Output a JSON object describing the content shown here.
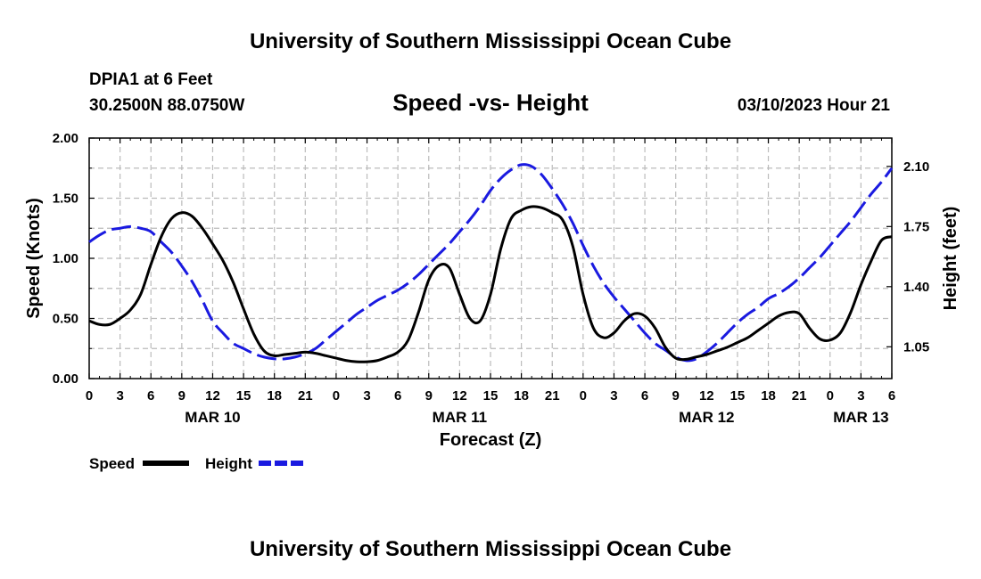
{
  "header": {
    "title": "University of Southern Mississippi Ocean Cube",
    "station": "DPIA1 at 6 Feet",
    "coords": "30.2500N  88.0750W",
    "subtitle": "Speed -vs- Height",
    "datetime": "03/10/2023 Hour 21"
  },
  "footer": {
    "title": "University of Southern Mississippi Ocean Cube"
  },
  "chart_data": {
    "type": "line",
    "xlabel": "Forecast (Z)",
    "ylabel": "Speed (Knots)",
    "y2label": "Height (feet)",
    "xlim": [
      0,
      78
    ],
    "ylim": [
      0,
      2.0
    ],
    "y2lim": [
      0.865,
      2.265
    ],
    "grid": true,
    "x_ticks": [
      {
        "h": 0,
        "label": "0"
      },
      {
        "h": 3,
        "label": "3"
      },
      {
        "h": 6,
        "label": "6"
      },
      {
        "h": 9,
        "label": "9"
      },
      {
        "h": 12,
        "label": "12"
      },
      {
        "h": 15,
        "label": "15"
      },
      {
        "h": 18,
        "label": "18"
      },
      {
        "h": 21,
        "label": "21"
      },
      {
        "h": 24,
        "label": "0"
      },
      {
        "h": 27,
        "label": "3"
      },
      {
        "h": 30,
        "label": "6"
      },
      {
        "h": 33,
        "label": "9"
      },
      {
        "h": 36,
        "label": "12"
      },
      {
        "h": 39,
        "label": "15"
      },
      {
        "h": 42,
        "label": "18"
      },
      {
        "h": 45,
        "label": "21"
      },
      {
        "h": 48,
        "label": "0"
      },
      {
        "h": 51,
        "label": "3"
      },
      {
        "h": 54,
        "label": "6"
      },
      {
        "h": 57,
        "label": "9"
      },
      {
        "h": 60,
        "label": "12"
      },
      {
        "h": 63,
        "label": "15"
      },
      {
        "h": 66,
        "label": "18"
      },
      {
        "h": 69,
        "label": "21"
      },
      {
        "h": 72,
        "label": "0"
      },
      {
        "h": 75,
        "label": "3"
      },
      {
        "h": 78,
        "label": "6"
      }
    ],
    "date_labels": [
      {
        "h": 12,
        "label": "MAR 10"
      },
      {
        "h": 36,
        "label": "MAR 11"
      },
      {
        "h": 60,
        "label": "MAR 12"
      },
      {
        "h": 75,
        "label": "MAR 13"
      }
    ],
    "y_ticks": [
      "0.00",
      "0.50",
      "1.00",
      "1.50",
      "2.00"
    ],
    "y2_ticks": [
      "1.05",
      "1.40",
      "1.75",
      "2.10"
    ],
    "series": [
      {
        "name": "Speed",
        "axis": "left",
        "color": "#000000",
        "dash": "solid",
        "x": [
          0,
          1,
          2,
          3,
          4,
          5,
          6,
          7,
          8,
          9,
          10,
          11,
          12,
          13,
          14,
          15,
          16,
          17,
          18,
          19,
          20,
          21,
          22,
          23,
          24,
          25,
          26,
          27,
          28,
          29,
          30,
          31,
          32,
          33,
          34,
          35,
          36,
          37,
          38,
          39,
          40,
          41,
          42,
          43,
          44,
          45,
          46,
          47,
          48,
          49,
          50,
          51,
          52,
          53,
          54,
          55,
          56,
          57,
          58,
          59,
          60,
          61,
          62,
          63,
          64,
          65,
          66,
          67,
          68,
          69,
          70,
          71,
          72,
          73,
          74,
          75,
          76,
          77,
          78
        ],
        "values": [
          0.48,
          0.45,
          0.45,
          0.5,
          0.57,
          0.7,
          0.95,
          1.18,
          1.33,
          1.38,
          1.35,
          1.25,
          1.12,
          0.98,
          0.8,
          0.58,
          0.37,
          0.23,
          0.19,
          0.2,
          0.21,
          0.22,
          0.21,
          0.19,
          0.17,
          0.15,
          0.14,
          0.14,
          0.15,
          0.18,
          0.22,
          0.32,
          0.55,
          0.82,
          0.94,
          0.92,
          0.7,
          0.5,
          0.48,
          0.7,
          1.08,
          1.33,
          1.4,
          1.43,
          1.42,
          1.38,
          1.32,
          1.1,
          0.7,
          0.42,
          0.34,
          0.38,
          0.48,
          0.54,
          0.52,
          0.42,
          0.26,
          0.17,
          0.16,
          0.18,
          0.2,
          0.23,
          0.26,
          0.3,
          0.34,
          0.4,
          0.46,
          0.52,
          0.55,
          0.54,
          0.42,
          0.33,
          0.32,
          0.38,
          0.55,
          0.78,
          0.98,
          1.15,
          1.18
        ]
      },
      {
        "name": "Height",
        "axis": "right",
        "color": "#1a1ae0",
        "dash": "dashed",
        "x": [
          0,
          1,
          2,
          3,
          4,
          5,
          6,
          7,
          8,
          9,
          10,
          11,
          12,
          13,
          14,
          15,
          16,
          17,
          18,
          19,
          20,
          21,
          22,
          23,
          24,
          25,
          26,
          27,
          28,
          29,
          30,
          31,
          32,
          33,
          34,
          35,
          36,
          37,
          38,
          39,
          40,
          41,
          42,
          43,
          44,
          45,
          46,
          47,
          48,
          49,
          50,
          51,
          52,
          53,
          54,
          55,
          56,
          57,
          58,
          59,
          60,
          61,
          62,
          63,
          64,
          65,
          66,
          67,
          68,
          69,
          70,
          71,
          72,
          73,
          74,
          75,
          76,
          77,
          78
        ],
        "values": [
          1.66,
          1.7,
          1.73,
          1.74,
          1.75,
          1.74,
          1.72,
          1.66,
          1.6,
          1.52,
          1.43,
          1.32,
          1.2,
          1.13,
          1.07,
          1.04,
          1.01,
          0.99,
          0.98,
          0.98,
          0.99,
          1.01,
          1.04,
          1.09,
          1.14,
          1.19,
          1.24,
          1.28,
          1.32,
          1.35,
          1.38,
          1.42,
          1.47,
          1.53,
          1.59,
          1.65,
          1.72,
          1.79,
          1.87,
          1.96,
          2.03,
          2.08,
          2.11,
          2.1,
          2.05,
          1.97,
          1.88,
          1.77,
          1.64,
          1.52,
          1.42,
          1.34,
          1.27,
          1.2,
          1.13,
          1.07,
          1.03,
          0.99,
          0.97,
          0.98,
          1.02,
          1.07,
          1.13,
          1.19,
          1.24,
          1.28,
          1.33,
          1.36,
          1.4,
          1.45,
          1.51,
          1.57,
          1.64,
          1.71,
          1.78,
          1.86,
          1.94,
          2.01,
          2.09
        ]
      }
    ],
    "legend": [
      {
        "name": "Speed",
        "color": "#000000",
        "dash": "solid"
      },
      {
        "name": "Height",
        "color": "#1a1ae0",
        "dash": "dashed"
      }
    ]
  }
}
